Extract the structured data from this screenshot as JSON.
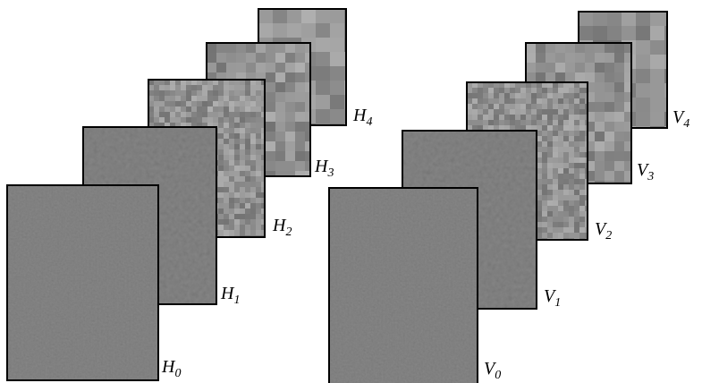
{
  "pyramids": [
    {
      "levels": [
        {
          "letter": "H",
          "index": "0"
        },
        {
          "letter": "H",
          "index": "1"
        },
        {
          "letter": "H",
          "index": "2"
        },
        {
          "letter": "H",
          "index": "3"
        },
        {
          "letter": "H",
          "index": "4"
        }
      ]
    },
    {
      "levels": [
        {
          "letter": "V",
          "index": "0"
        },
        {
          "letter": "V",
          "index": "1"
        },
        {
          "letter": "V",
          "index": "2"
        },
        {
          "letter": "V",
          "index": "3"
        },
        {
          "letter": "V",
          "index": "4"
        }
      ]
    }
  ]
}
